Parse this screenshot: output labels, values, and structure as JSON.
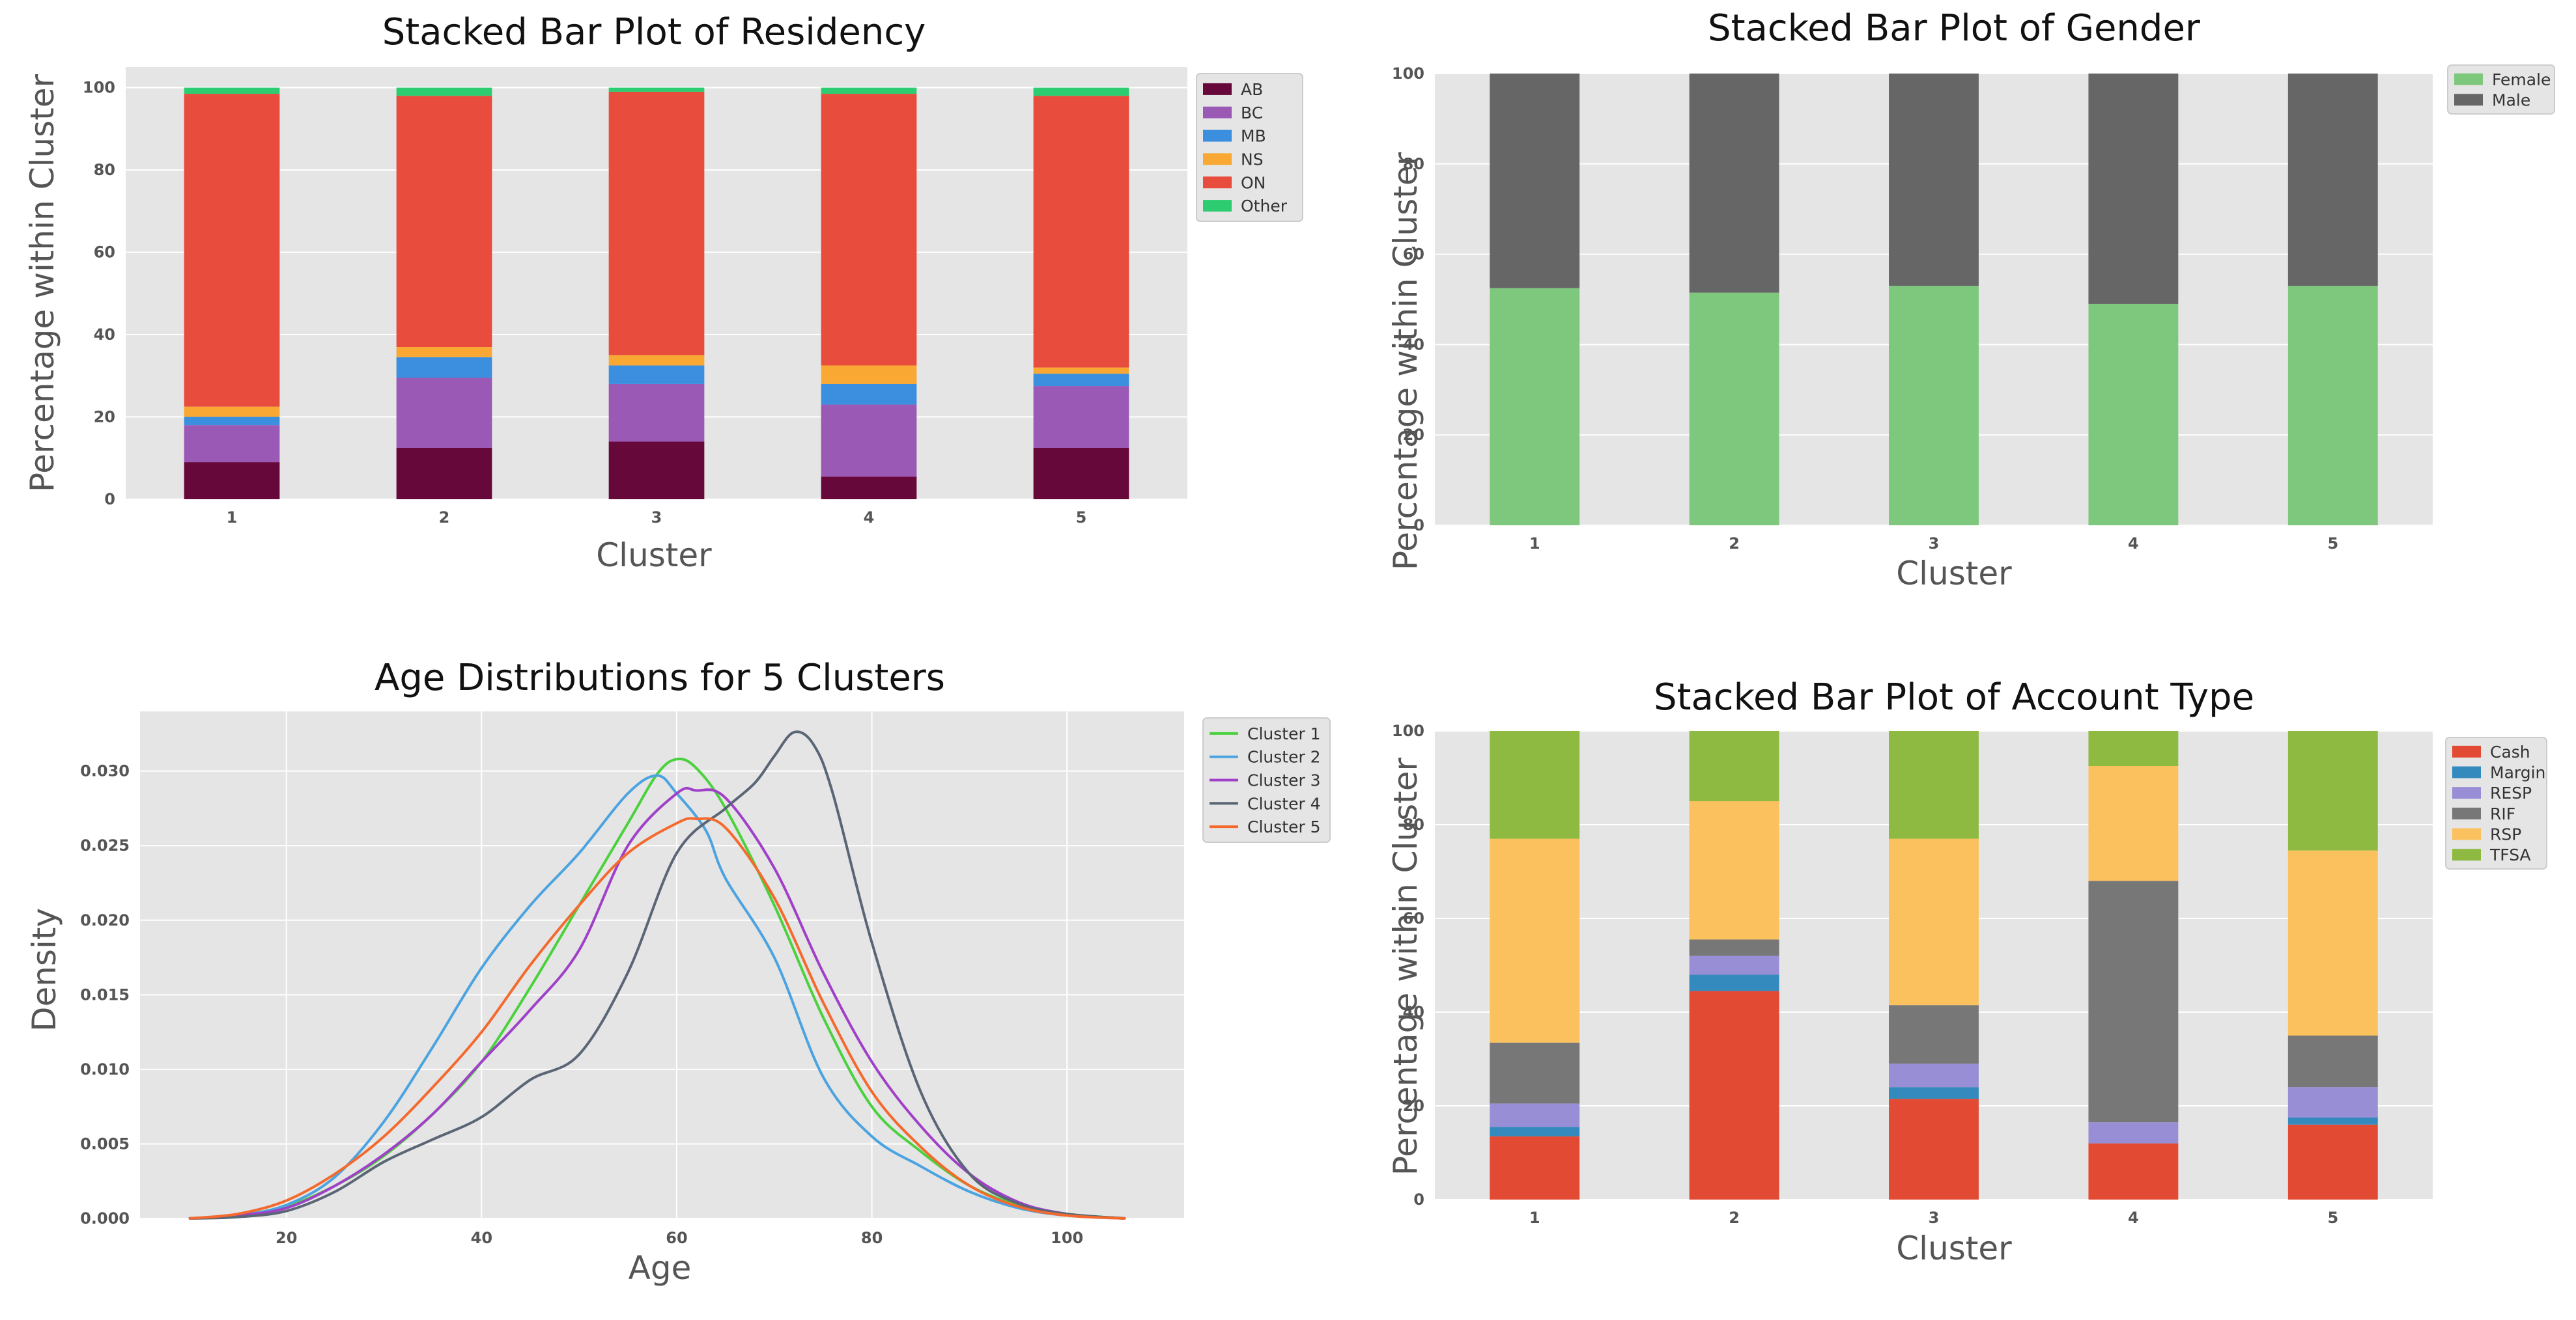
{
  "colors": {
    "panel_bg": "#e5e5e5",
    "grid": "#ffffff",
    "legend_bg": "#e5e5e5"
  },
  "chart_data": [
    {
      "id": "residency",
      "type": "bar",
      "stacked": true,
      "title": "Stacked Bar Plot of Residency",
      "xlabel": "Cluster",
      "ylabel": "Percentage within Cluster",
      "categories": [
        "1",
        "2",
        "3",
        "4",
        "5"
      ],
      "ylim": [
        0,
        105
      ],
      "yticks": [
        0,
        20,
        40,
        60,
        80,
        100
      ],
      "legend_position": "right",
      "series": [
        {
          "name": "AB",
          "color": "#67083a",
          "values": [
            9,
            12.5,
            14,
            5.5,
            12.5
          ]
        },
        {
          "name": "BC",
          "color": "#9b59b6",
          "values": [
            9,
            17,
            14,
            17.5,
            15
          ]
        },
        {
          "name": "MB",
          "color": "#3b8fde",
          "values": [
            2,
            5,
            4.5,
            5,
            3
          ]
        },
        {
          "name": "NS",
          "color": "#f9a933",
          "values": [
            2.5,
            2.5,
            2.5,
            4.5,
            1.5
          ]
        },
        {
          "name": "ON",
          "color": "#e74c3c",
          "values": [
            76,
            61,
            64,
            66,
            66
          ]
        },
        {
          "name": "Other",
          "color": "#2ecc71",
          "values": [
            1.5,
            2,
            1,
            1.5,
            2
          ]
        }
      ]
    },
    {
      "id": "gender",
      "type": "bar",
      "stacked": true,
      "title": "Stacked Bar Plot of Gender",
      "xlabel": "Cluster",
      "ylabel": "Percentage within Cluster",
      "categories": [
        "1",
        "2",
        "3",
        "4",
        "5"
      ],
      "ylim": [
        0,
        100
      ],
      "yticks": [
        0,
        20,
        40,
        60,
        80,
        100
      ],
      "legend_position": "right",
      "series": [
        {
          "name": "Female",
          "color": "#7ec87e",
          "values": [
            52.5,
            51.5,
            53,
            49,
            53
          ]
        },
        {
          "name": "Male",
          "color": "#666666",
          "values": [
            47.5,
            48.5,
            47,
            51,
            47
          ]
        }
      ]
    },
    {
      "id": "age",
      "type": "line",
      "title": "Age Distributions for 5 Clusters",
      "xlabel": "Age",
      "ylabel": "Density",
      "xlim": [
        5,
        112
      ],
      "ylim": [
        0,
        0.034
      ],
      "xticks": [
        20,
        40,
        60,
        80,
        100
      ],
      "yticks": [
        0.0,
        0.005,
        0.01,
        0.015,
        0.02,
        0.025,
        0.03
      ],
      "ytick_labels": [
        "0.000",
        "0.005",
        "0.010",
        "0.015",
        "0.020",
        "0.025",
        "0.030"
      ],
      "legend_position": "right",
      "series": [
        {
          "name": "Cluster 1",
          "color": "#4bd13e",
          "x": [
            10,
            15,
            20,
            25,
            30,
            35,
            40,
            45,
            50,
            55,
            58,
            60,
            62,
            65,
            70,
            75,
            80,
            85,
            90,
            95,
            100,
            106
          ],
          "y": [
            0,
            0.0002,
            0.0008,
            0.0022,
            0.0042,
            0.007,
            0.0105,
            0.0155,
            0.021,
            0.0265,
            0.0298,
            0.0308,
            0.0302,
            0.0275,
            0.021,
            0.0135,
            0.0075,
            0.0045,
            0.0022,
            0.0009,
            0.0003,
            0
          ]
        },
        {
          "name": "Cluster 2",
          "color": "#4ba3e0",
          "x": [
            10,
            15,
            20,
            25,
            30,
            35,
            40,
            45,
            50,
            55,
            58,
            60,
            63,
            65,
            70,
            75,
            80,
            85,
            90,
            95,
            100,
            106
          ],
          "y": [
            0,
            0.0002,
            0.0009,
            0.0028,
            0.0065,
            0.0115,
            0.0168,
            0.021,
            0.0245,
            0.0285,
            0.0297,
            0.0285,
            0.026,
            0.0228,
            0.0175,
            0.0095,
            0.0055,
            0.0035,
            0.0018,
            0.0007,
            0.0002,
            0
          ]
        },
        {
          "name": "Cluster 3",
          "color": "#a040c8",
          "x": [
            10,
            15,
            20,
            25,
            30,
            35,
            40,
            45,
            50,
            55,
            60,
            62,
            65,
            70,
            75,
            80,
            85,
            90,
            95,
            100,
            106
          ],
          "y": [
            0,
            0.0002,
            0.0007,
            0.0022,
            0.0043,
            0.007,
            0.0105,
            0.014,
            0.018,
            0.025,
            0.0285,
            0.0287,
            0.0282,
            0.0235,
            0.0165,
            0.0105,
            0.0062,
            0.003,
            0.0011,
            0.0003,
            0
          ]
        },
        {
          "name": "Cluster 4",
          "color": "#5a6675",
          "x": [
            10,
            15,
            20,
            25,
            30,
            35,
            40,
            45,
            50,
            55,
            60,
            65,
            68,
            70,
            72,
            74,
            76,
            80,
            85,
            90,
            95,
            100,
            106
          ],
          "y": [
            0,
            0.0001,
            0.0005,
            0.0018,
            0.0038,
            0.0053,
            0.0068,
            0.0093,
            0.011,
            0.0165,
            0.0245,
            0.0275,
            0.0292,
            0.031,
            0.0326,
            0.0318,
            0.0285,
            0.0185,
            0.0085,
            0.003,
            0.001,
            0.0003,
            0
          ]
        },
        {
          "name": "Cluster 5",
          "color": "#f46a2e",
          "x": [
            10,
            15,
            20,
            25,
            30,
            35,
            40,
            45,
            50,
            55,
            60,
            62,
            65,
            70,
            75,
            80,
            85,
            90,
            95,
            100,
            106
          ],
          "y": [
            0,
            0.0003,
            0.0012,
            0.003,
            0.0055,
            0.0088,
            0.0125,
            0.017,
            0.021,
            0.0245,
            0.0265,
            0.0268,
            0.0262,
            0.0215,
            0.0145,
            0.0085,
            0.0048,
            0.0022,
            0.0008,
            0.0002,
            0
          ]
        }
      ]
    },
    {
      "id": "account",
      "type": "bar",
      "stacked": true,
      "title": "Stacked Bar Plot of Account Type",
      "xlabel": "Cluster",
      "ylabel": "Percentage within Cluster",
      "categories": [
        "1",
        "2",
        "3",
        "4",
        "5"
      ],
      "ylim": [
        0,
        100
      ],
      "yticks": [
        0,
        20,
        40,
        60,
        80,
        100
      ],
      "legend_position": "right",
      "series": [
        {
          "name": "Cash",
          "color": "#e24a33",
          "values": [
            13.5,
            44.5,
            21.5,
            12,
            16
          ]
        },
        {
          "name": "Margin",
          "color": "#348abd",
          "values": [
            2,
            3.5,
            2.5,
            0,
            1.5
          ]
        },
        {
          "name": "RESP",
          "color": "#988ed5",
          "values": [
            5,
            4,
            5,
            4.5,
            6.5
          ]
        },
        {
          "name": "RIF",
          "color": "#777777",
          "values": [
            13,
            3.5,
            12.5,
            51.5,
            11
          ]
        },
        {
          "name": "RSP",
          "color": "#fbc15e",
          "values": [
            43.5,
            29.5,
            35.5,
            24.5,
            39.5
          ]
        },
        {
          "name": "TFSA",
          "color": "#8eba42",
          "values": [
            23,
            15,
            23,
            7.5,
            25.5
          ]
        }
      ]
    }
  ]
}
